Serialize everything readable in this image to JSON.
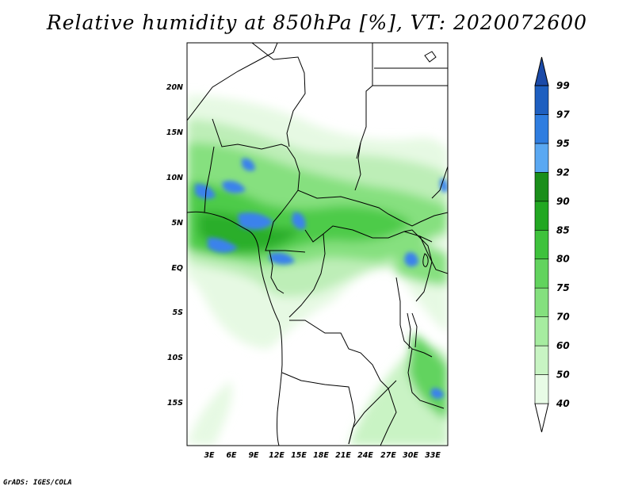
{
  "title": "Relative humidity at 850hPa [%], VT: 2020072600",
  "credit": "GrADS: IGES/COLA",
  "map": {
    "lat_labels": [
      "20N",
      "15N",
      "10N",
      "5N",
      "EQ",
      "5S",
      "10S",
      "15S"
    ],
    "lon_labels": [
      "3E",
      "6E",
      "9E",
      "12E",
      "15E",
      "18E",
      "21E",
      "24E",
      "27E",
      "30E",
      "33E"
    ]
  },
  "colorbar": {
    "levels": [
      "40",
      "50",
      "60",
      "70",
      "75",
      "80",
      "85",
      "90",
      "92",
      "95",
      "97",
      "99"
    ],
    "colors": [
      "#ffffff",
      "#e8fbe6",
      "#c8f4c3",
      "#a6ecA0",
      "#84e07e",
      "#62d35e",
      "#3ec23c",
      "#22a722",
      "#1a8e1a",
      "#5aa8f2",
      "#2f7de0",
      "#1e5fc0",
      "#1b4aa8"
    ]
  }
}
